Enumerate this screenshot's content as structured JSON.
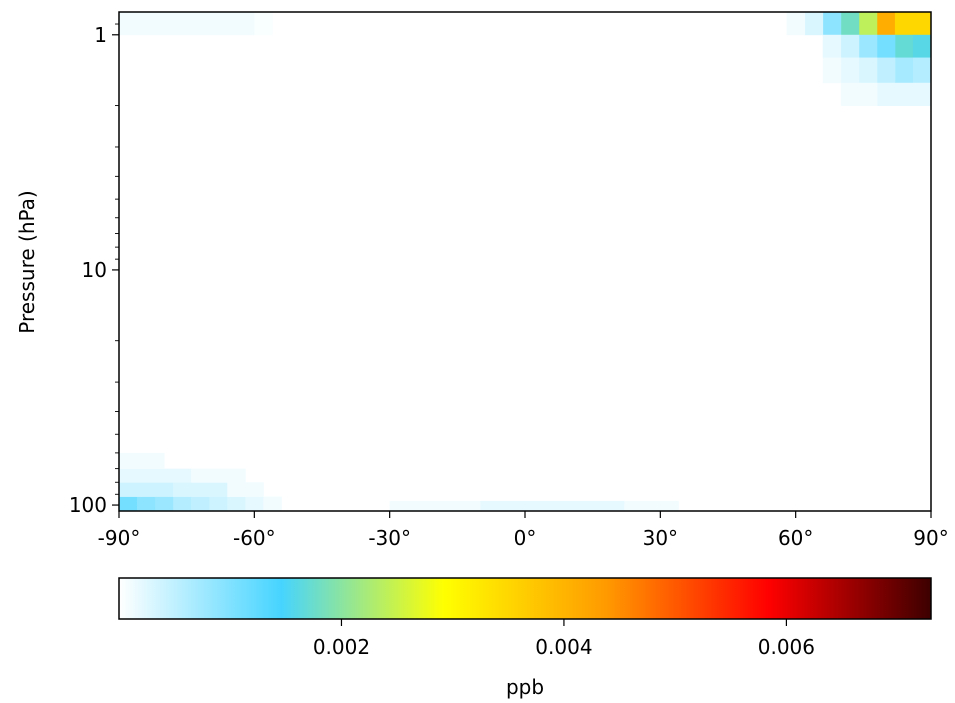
{
  "chart_data": {
    "type": "heatmap",
    "title": "",
    "xlabel": "",
    "ylabel": "Pressure (hPa)",
    "y_scale": "log",
    "y_inverted": true,
    "xlim": [
      -90,
      90
    ],
    "ylim": [
      106,
      0.8
    ],
    "x_ticks": [
      {
        "value": -90,
        "label": "-90°"
      },
      {
        "value": -60,
        "label": "-60°"
      },
      {
        "value": -30,
        "label": "-30°"
      },
      {
        "value": 0,
        "label": "0°"
      },
      {
        "value": 30,
        "label": "30°"
      },
      {
        "value": 60,
        "label": "60°"
      },
      {
        "value": 90,
        "label": "90°"
      }
    ],
    "y_ticks": [
      {
        "value": 1,
        "label": "1"
      },
      {
        "value": 10,
        "label": "10"
      },
      {
        "value": 100,
        "label": "100"
      }
    ],
    "colorbar": {
      "label": "ppb",
      "range": [
        0,
        0.0073
      ],
      "ticks": [
        {
          "value": 0.002,
          "label": "0.002"
        },
        {
          "value": 0.004,
          "label": "0.004"
        },
        {
          "value": 0.006,
          "label": "0.006"
        }
      ],
      "colors": [
        "#ffffff",
        "#46d4ff",
        "#ffff00",
        "#ff9a00",
        "#ff0000",
        "#3d0000"
      ]
    },
    "cells": [
      {
        "lat_range": [
          78,
          82
        ],
        "p_range": [
          0.8,
          1.0
        ],
        "value": 0.0041
      },
      {
        "lat_range": [
          82,
          86
        ],
        "p_range": [
          0.8,
          1.0
        ],
        "value": 0.0035
      },
      {
        "lat_range": [
          86,
          90
        ],
        "p_range": [
          0.8,
          1.0
        ],
        "value": 0.0035
      },
      {
        "lat_range": [
          74,
          78
        ],
        "p_range": [
          0.8,
          1.0
        ],
        "value": 0.0024
      },
      {
        "lat_range": [
          70,
          74
        ],
        "p_range": [
          0.8,
          1.0
        ],
        "value": 0.0018
      },
      {
        "lat_range": [
          66,
          70
        ],
        "p_range": [
          0.8,
          1.0
        ],
        "value": 0.0009
      },
      {
        "lat_range": [
          62,
          66
        ],
        "p_range": [
          0.8,
          1.0
        ],
        "value": 0.0003
      },
      {
        "lat_range": [
          58,
          62
        ],
        "p_range": [
          0.8,
          1.0
        ],
        "value": 0.0001
      },
      {
        "lat_range": [
          82,
          86
        ],
        "p_range": [
          1.0,
          1.25
        ],
        "value": 0.0017
      },
      {
        "lat_range": [
          86,
          90
        ],
        "p_range": [
          1.0,
          1.25
        ],
        "value": 0.0016
      },
      {
        "lat_range": [
          78,
          82
        ],
        "p_range": [
          1.0,
          1.25
        ],
        "value": 0.0011
      },
      {
        "lat_range": [
          74,
          78
        ],
        "p_range": [
          1.0,
          1.25
        ],
        "value": 0.0008
      },
      {
        "lat_range": [
          70,
          74
        ],
        "p_range": [
          1.0,
          1.25
        ],
        "value": 0.0004
      },
      {
        "lat_range": [
          66,
          70
        ],
        "p_range": [
          1.0,
          1.25
        ],
        "value": 0.0002
      },
      {
        "lat_range": [
          82,
          86
        ],
        "p_range": [
          1.25,
          1.6
        ],
        "value": 0.0007
      },
      {
        "lat_range": [
          86,
          90
        ],
        "p_range": [
          1.25,
          1.6
        ],
        "value": 0.0006
      },
      {
        "lat_range": [
          78,
          82
        ],
        "p_range": [
          1.25,
          1.6
        ],
        "value": 0.0005
      },
      {
        "lat_range": [
          74,
          78
        ],
        "p_range": [
          1.25,
          1.6
        ],
        "value": 0.0003
      },
      {
        "lat_range": [
          70,
          74
        ],
        "p_range": [
          1.25,
          1.6
        ],
        "value": 0.0002
      },
      {
        "lat_range": [
          66,
          70
        ],
        "p_range": [
          1.25,
          1.6
        ],
        "value": 0.0001
      },
      {
        "lat_range": [
          78,
          90
        ],
        "p_range": [
          1.6,
          2.0
        ],
        "value": 0.0002
      },
      {
        "lat_range": [
          70,
          78
        ],
        "p_range": [
          1.6,
          2.0
        ],
        "value": 0.0001
      },
      {
        "lat_range": [
          -90,
          -60
        ],
        "p_range": [
          0.8,
          1.0
        ],
        "value": 0.0001
      },
      {
        "lat_range": [
          -60,
          -56
        ],
        "p_range": [
          0.8,
          1.0
        ],
        "value": 5e-05
      },
      {
        "lat_range": [
          -90,
          -86
        ],
        "p_range": [
          92,
          106
        ],
        "value": 0.0011
      },
      {
        "lat_range": [
          -86,
          -82
        ],
        "p_range": [
          92,
          106
        ],
        "value": 0.0009
      },
      {
        "lat_range": [
          -82,
          -78
        ],
        "p_range": [
          92,
          106
        ],
        "value": 0.0008
      },
      {
        "lat_range": [
          -78,
          -74
        ],
        "p_range": [
          92,
          106
        ],
        "value": 0.0006
      },
      {
        "lat_range": [
          -74,
          -70
        ],
        "p_range": [
          92,
          106
        ],
        "value": 0.0005
      },
      {
        "lat_range": [
          -70,
          -66
        ],
        "p_range": [
          92,
          106
        ],
        "value": 0.0004
      },
      {
        "lat_range": [
          -66,
          -62
        ],
        "p_range": [
          92,
          106
        ],
        "value": 0.0003
      },
      {
        "lat_range": [
          -62,
          -58
        ],
        "p_range": [
          92,
          106
        ],
        "value": 0.0002
      },
      {
        "lat_range": [
          -58,
          -54
        ],
        "p_range": [
          92,
          106
        ],
        "value": 0.0001
      },
      {
        "lat_range": [
          -90,
          -78
        ],
        "p_range": [
          80,
          92
        ],
        "value": 0.0004
      },
      {
        "lat_range": [
          -78,
          -66
        ],
        "p_range": [
          80,
          92
        ],
        "value": 0.0003
      },
      {
        "lat_range": [
          -66,
          -58
        ],
        "p_range": [
          80,
          92
        ],
        "value": 0.0001
      },
      {
        "lat_range": [
          -90,
          -74
        ],
        "p_range": [
          70,
          80
        ],
        "value": 0.0002
      },
      {
        "lat_range": [
          -74,
          -62
        ],
        "p_range": [
          70,
          80
        ],
        "value": 0.0001
      },
      {
        "lat_range": [
          -90,
          -80
        ],
        "p_range": [
          60,
          70
        ],
        "value": 0.0001
      },
      {
        "lat_range": [
          -10,
          22
        ],
        "p_range": [
          96,
          106
        ],
        "value": 0.0002
      },
      {
        "lat_range": [
          22,
          34
        ],
        "p_range": [
          96,
          106
        ],
        "value": 0.0001
      },
      {
        "lat_range": [
          -30,
          -10
        ],
        "p_range": [
          96,
          106
        ],
        "value": 0.0001
      }
    ]
  }
}
